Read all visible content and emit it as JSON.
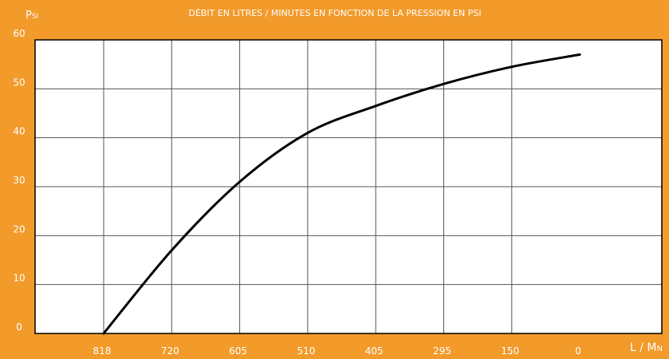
{
  "colors": {
    "background": "#f29a2a",
    "plot_background": "#ffffff",
    "grid": "#555555",
    "curve": "#000000",
    "text": "#ffffff"
  },
  "chart_data": {
    "type": "line",
    "title": "Débit en litres / minutes en fonction de la pression en PSI",
    "xlabel": "L / Mn",
    "ylabel": "Psi",
    "x_categories": [
      "818",
      "720",
      "605",
      "510",
      "405",
      "295",
      "150",
      "0"
    ],
    "y_ticks": [
      0,
      10,
      20,
      30,
      40,
      50,
      60
    ],
    "ylim": [
      0,
      60
    ],
    "grid": true,
    "legend": "none",
    "series": [
      {
        "values": [
          {
            "x": "818",
            "y": 0
          },
          {
            "x": "720",
            "y": 17
          },
          {
            "x": "605",
            "y": 31
          },
          {
            "x": "510",
            "y": 41
          },
          {
            "x": "405",
            "y": 46.5
          },
          {
            "x": "295",
            "y": 51
          },
          {
            "x": "150",
            "y": 54.5
          },
          {
            "x": "0",
            "y": 57
          }
        ]
      }
    ]
  }
}
